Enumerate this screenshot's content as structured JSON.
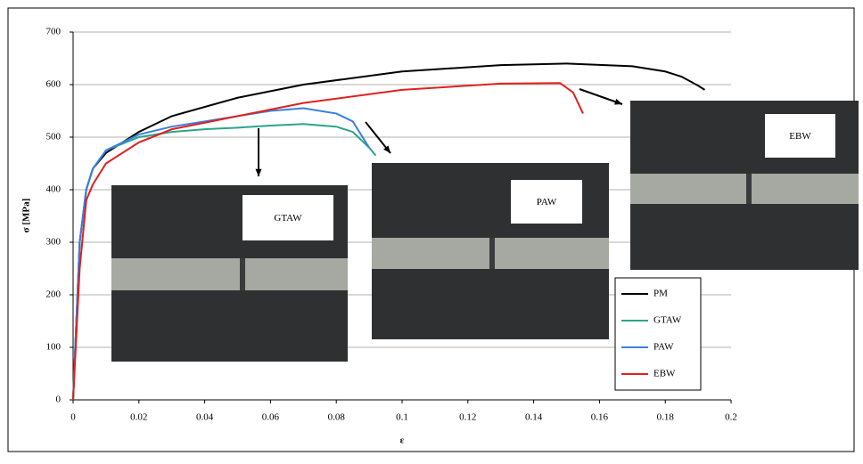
{
  "chart_data": {
    "type": "line",
    "xlabel": "ε",
    "ylabel": "σ [MPa]",
    "xlim": [
      0,
      0.2
    ],
    "xticks": [
      0,
      0.02,
      0.04,
      0.06,
      0.08,
      0.1,
      0.12,
      0.14,
      0.16,
      0.18,
      0.2
    ],
    "ylim": [
      0,
      700
    ],
    "yticks": [
      0,
      100,
      200,
      300,
      400,
      500,
      600,
      700
    ],
    "grid": true,
    "series": [
      {
        "name": "PM",
        "color": "#000000",
        "x": [
          0,
          0.002,
          0.004,
          0.006,
          0.01,
          0.02,
          0.03,
          0.05,
          0.07,
          0.1,
          0.13,
          0.15,
          0.17,
          0.18,
          0.185,
          0.19,
          0.192
        ],
        "values": [
          0,
          300,
          400,
          440,
          470,
          510,
          540,
          575,
          600,
          625,
          637,
          640,
          635,
          625,
          615,
          598,
          590
        ]
      },
      {
        "name": "GTAW",
        "color": "#2aa58a",
        "x": [
          0,
          0.002,
          0.004,
          0.006,
          0.01,
          0.02,
          0.03,
          0.04,
          0.05,
          0.06,
          0.07,
          0.08,
          0.085,
          0.09,
          0.092
        ],
        "values": [
          0,
          300,
          400,
          440,
          475,
          500,
          510,
          515,
          518,
          522,
          525,
          520,
          510,
          480,
          465
        ]
      },
      {
        "name": "PAW",
        "color": "#3a7fe0",
        "x": [
          0,
          0.002,
          0.004,
          0.006,
          0.01,
          0.02,
          0.03,
          0.04,
          0.05,
          0.06,
          0.07,
          0.08,
          0.085,
          0.088,
          0.09
        ],
        "values": [
          0,
          300,
          400,
          440,
          475,
          505,
          520,
          530,
          540,
          550,
          555,
          545,
          530,
          500,
          480
        ]
      },
      {
        "name": "EBW",
        "color": "#e02020",
        "x": [
          0,
          0.002,
          0.004,
          0.006,
          0.01,
          0.02,
          0.03,
          0.05,
          0.07,
          0.1,
          0.13,
          0.148,
          0.152,
          0.155
        ],
        "values": [
          0,
          250,
          380,
          410,
          450,
          490,
          515,
          540,
          565,
          590,
          602,
          603,
          585,
          545
        ]
      }
    ],
    "inset_labels": [
      "GTAW",
      "PAW",
      "EBW"
    ]
  }
}
